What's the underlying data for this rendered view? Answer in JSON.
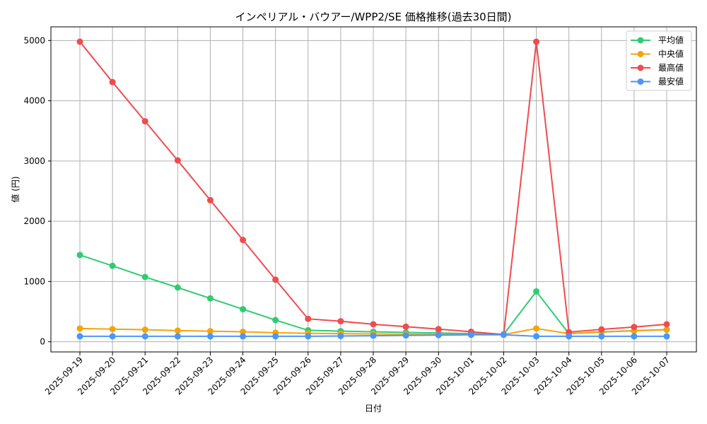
{
  "chart_data": {
    "type": "line",
    "title": "インペリアル・バウアー/WPP2/SE 価格推移(過去30日間)",
    "xlabel": "日付",
    "ylabel": "値 (円)",
    "ylim": [
      -150,
      5250
    ],
    "yticks": [
      0,
      1000,
      2000,
      3000,
      4000,
      5000
    ],
    "grid": true,
    "legend_position": "upper right",
    "categories": [
      "2025-09-19",
      "2025-09-20",
      "2025-09-21",
      "2025-09-22",
      "2025-09-23",
      "2025-09-24",
      "2025-09-25",
      "2025-09-26",
      "2025-09-27",
      "2025-09-28",
      "2025-09-29",
      "2025-09-30",
      "2025-10-01",
      "2025-10-02",
      "2025-10-03",
      "2025-10-04",
      "2025-10-05",
      "2025-10-06",
      "2025-10-07"
    ],
    "series": [
      {
        "name": "平均値",
        "color": "#2ecc71",
        "values": [
          1440,
          1260,
          1075,
          900,
          720,
          540,
          360,
          190,
          175,
          165,
          155,
          145,
          135,
          125,
          835,
          135,
          160,
          185,
          200
        ]
      },
      {
        "name": "中央値",
        "color": "#f5a30b",
        "values": [
          220,
          210,
          200,
          185,
          175,
          165,
          150,
          140,
          135,
          130,
          125,
          120,
          120,
          120,
          220,
          135,
          165,
          180,
          200
        ]
      },
      {
        "name": "最高値",
        "color": "#f04b4f",
        "values": [
          4980,
          4310,
          3660,
          3010,
          2350,
          1690,
          1030,
          380,
          340,
          290,
          250,
          210,
          165,
          120,
          4980,
          160,
          205,
          245,
          290
        ]
      },
      {
        "name": "最安値",
        "color": "#4a97f7",
        "values": [
          90,
          90,
          90,
          90,
          90,
          90,
          90,
          90,
          95,
          100,
          105,
          110,
          115,
          115,
          90,
          90,
          90,
          90,
          90
        ]
      }
    ]
  }
}
